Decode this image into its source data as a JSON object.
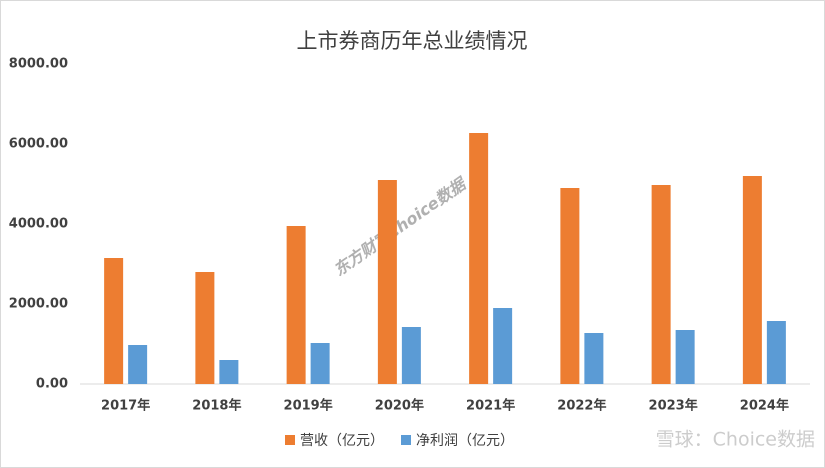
{
  "chart_data": {
    "type": "bar",
    "title": "上市券商历年总业绩情况",
    "categories": [
      "2017年",
      "2018年",
      "2019年",
      "2020年",
      "2021年",
      "2022年",
      "2023年",
      "2024年"
    ],
    "series": [
      {
        "name": "营收（亿元）",
        "color": "#ed7d31",
        "values": [
          3150,
          2800,
          3950,
          5100,
          6275,
          4900,
          4975,
          5200
        ]
      },
      {
        "name": "净利润（亿元）",
        "color": "#5b9bd5",
        "values": [
          975,
          600,
          1025,
          1425,
          1900,
          1275,
          1350,
          1575
        ]
      }
    ],
    "ylim": [
      0,
      8000
    ],
    "yticks": [
      {
        "value": 0,
        "label": "0.00"
      },
      {
        "value": 2000,
        "label": "2000.00"
      },
      {
        "value": 4000,
        "label": "4000.00"
      },
      {
        "value": 6000,
        "label": "6000.00"
      },
      {
        "value": 8000,
        "label": "8000.00"
      }
    ],
    "grid": false,
    "legend": "bottom",
    "annotations": [
      "东方财富Choice数据",
      "雪球：Choice数据"
    ]
  }
}
